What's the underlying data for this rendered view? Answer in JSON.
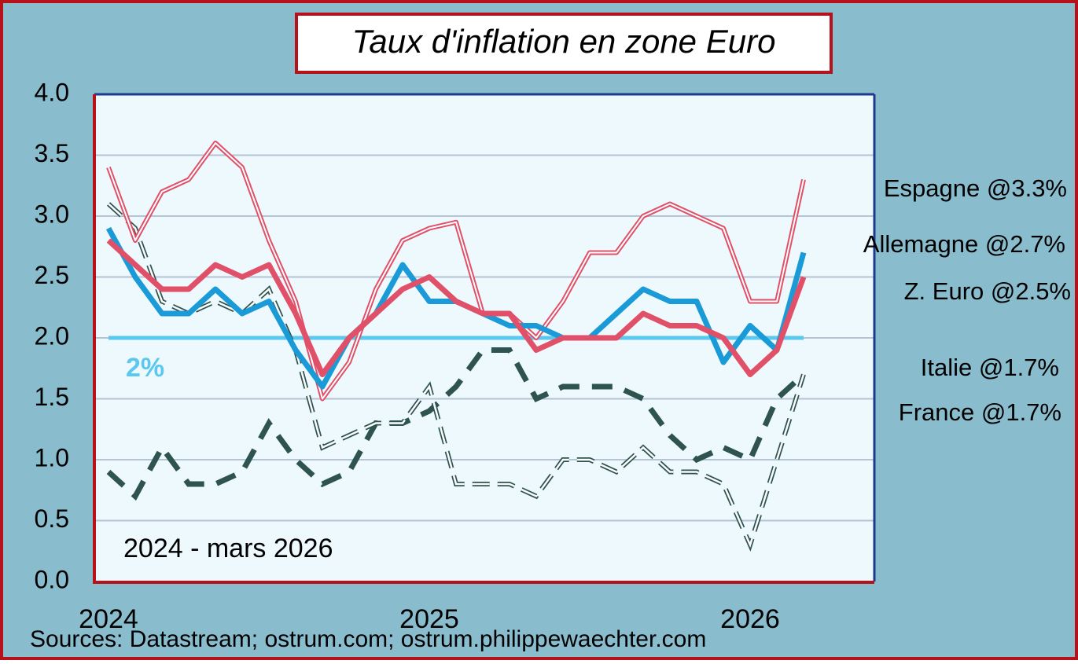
{
  "chart_data": {
    "type": "line",
    "title": "Taux d'inflation en zone Euro",
    "annotation": "2024 -  mars 2026",
    "source": "Sources: Datastream; ostrum.com; ostrum.philippewaechter.com",
    "categories": [
      "2024",
      null,
      null,
      null,
      null,
      null,
      null,
      null,
      null,
      null,
      null,
      null,
      "2025",
      null,
      null,
      null,
      null,
      null,
      null,
      null,
      null,
      null,
      null,
      null,
      "2026",
      null,
      null
    ],
    "ylim": [
      0,
      4
    ],
    "yticks": [
      {
        "value": 0,
        "label": "0.0"
      },
      0.5,
      {
        "value": 1,
        "label": "1.0"
      },
      1.5,
      {
        "value": 2,
        "label": "2.0"
      },
      2.5,
      {
        "value": 3,
        "label": "3.0"
      },
      3.5,
      {
        "value": 4,
        "label": "4.0"
      }
    ],
    "grid": true,
    "reference_line": {
      "value": 2,
      "label": "2%",
      "color": "#5bc8f0"
    },
    "series": [
      {
        "name": "Espagne @3.3%",
        "color": "#e05068",
        "style": "double",
        "values": [
          3.4,
          2.8,
          3.2,
          3.3,
          3.6,
          3.4,
          2.8,
          2.3,
          1.5,
          1.8,
          2.4,
          2.8,
          2.9,
          2.95,
          2.2,
          2.2,
          2.0,
          2.3,
          2.7,
          2.7,
          3.0,
          3.1,
          3.0,
          2.9,
          2.3,
          2.3,
          3.3
        ]
      },
      {
        "name": "Allemagne @2.7%",
        "color": "#1a9ad6",
        "style": "solid",
        "values": [
          2.9,
          2.5,
          2.2,
          2.2,
          2.4,
          2.2,
          2.3,
          1.9,
          1.6,
          2.0,
          2.2,
          2.6,
          2.3,
          2.3,
          2.2,
          2.1,
          2.1,
          2.0,
          2.0,
          2.2,
          2.4,
          2.3,
          2.3,
          1.8,
          2.1,
          1.9,
          2.7
        ]
      },
      {
        "name": "Z. Euro @2.5%",
        "color": "#e05068",
        "style": "solid",
        "values": [
          2.8,
          2.6,
          2.4,
          2.4,
          2.6,
          2.5,
          2.6,
          2.2,
          1.7,
          2.0,
          2.2,
          2.4,
          2.5,
          2.3,
          2.2,
          2.2,
          1.9,
          2.0,
          2.0,
          2.0,
          2.2,
          2.1,
          2.1,
          2.0,
          1.7,
          1.9,
          2.5
        ]
      },
      {
        "name": "Italie @1.7%",
        "color": "#2f5450",
        "style": "double-dashed",
        "values": [
          3.1,
          2.9,
          2.3,
          2.2,
          2.3,
          2.2,
          2.4,
          1.9,
          1.1,
          1.2,
          1.3,
          1.3,
          1.6,
          0.8,
          0.8,
          0.8,
          0.7,
          1.0,
          1.0,
          0.9,
          1.1,
          0.9,
          0.9,
          0.8,
          0.3,
          1.0,
          1.7
        ]
      },
      {
        "name": "France @1.7%",
        "color": "#2f5450",
        "style": "dashed",
        "values": [
          0.9,
          0.7,
          1.1,
          0.8,
          0.8,
          0.9,
          1.3,
          1.0,
          0.8,
          0.9,
          1.3,
          1.3,
          1.4,
          1.6,
          1.9,
          1.9,
          1.5,
          1.6,
          1.6,
          1.6,
          1.5,
          1.2,
          1.0,
          1.1,
          1.0,
          1.5,
          1.7
        ]
      }
    ]
  }
}
